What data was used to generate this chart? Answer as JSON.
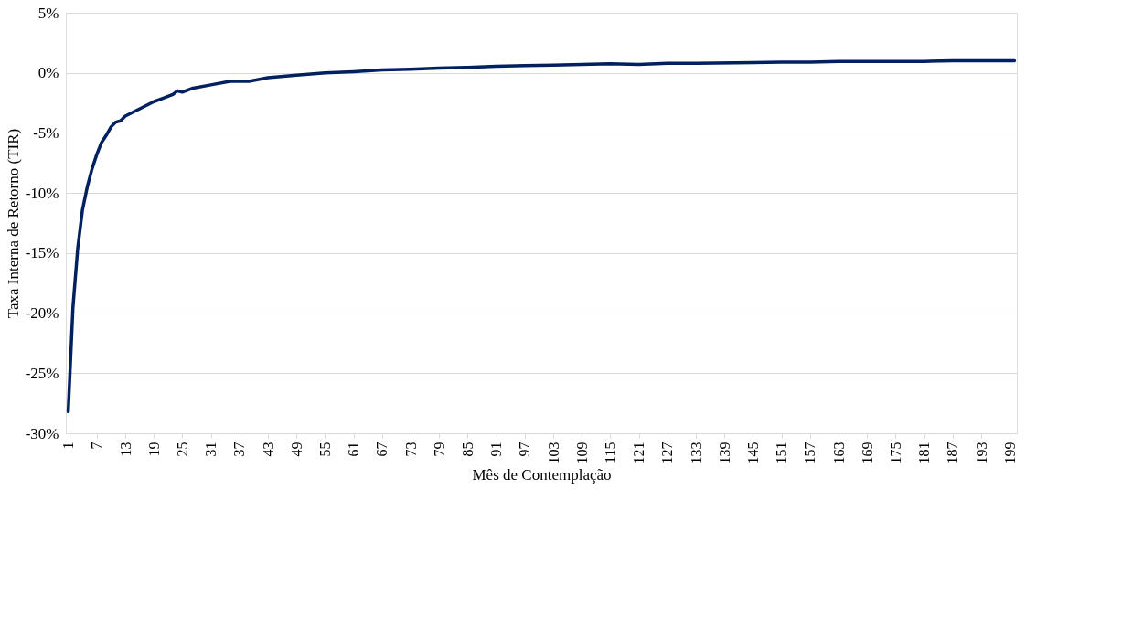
{
  "chart_data": {
    "type": "line",
    "xlabel": "Mês de Contemplação",
    "ylabel": "Taxa Interna de Retorno (TIR)",
    "series": [
      {
        "color": "#002060",
        "x": [
          1,
          2,
          3,
          4,
          5,
          6,
          7,
          8,
          9,
          10,
          11,
          12,
          13,
          15,
          17,
          19,
          21,
          23,
          24,
          25,
          27,
          31,
          35,
          39,
          43,
          49,
          55,
          61,
          67,
          73,
          79,
          85,
          91,
          97,
          103,
          115,
          121,
          127,
          133,
          145,
          151,
          157,
          163,
          175,
          181,
          187,
          199,
          200
        ],
        "values": [
          -28.2,
          -19.5,
          -14.6,
          -11.4,
          -9.5,
          -8,
          -6.8,
          -5.8,
          -5.2,
          -4.5,
          -4.1,
          -4,
          -3.6,
          -3.2,
          -2.8,
          -2.4,
          -2.1,
          -1.8,
          -1.5,
          -1.6,
          -1.3,
          -1,
          -0.7,
          -0.7,
          -0.4,
          -0.2,
          0,
          0.1,
          0.25,
          0.3,
          0.4,
          0.45,
          0.55,
          0.6,
          0.65,
          0.75,
          0.7,
          0.8,
          0.8,
          0.85,
          0.9,
          0.9,
          0.95,
          0.95,
          0.95,
          1,
          1,
          1
        ]
      }
    ],
    "xlim": [
      0.5,
      200.5
    ],
    "xticks": [
      1,
      7,
      13,
      19,
      25,
      31,
      37,
      43,
      49,
      55,
      61,
      67,
      73,
      79,
      85,
      91,
      97,
      103,
      109,
      115,
      121,
      127,
      133,
      139,
      145,
      151,
      157,
      163,
      169,
      175,
      181,
      187,
      193,
      199
    ],
    "ylim": [
      -30,
      5
    ],
    "yticks": [
      {
        "value": 5,
        "label": "5%"
      },
      {
        "value": 0,
        "label": "0%"
      },
      {
        "value": -5,
        "label": "-5%"
      },
      {
        "value": -10,
        "label": "-10%"
      },
      {
        "value": -15,
        "label": "-15%"
      },
      {
        "value": -20,
        "label": "-20%"
      },
      {
        "value": -25,
        "label": "-25%"
      },
      {
        "value": -30,
        "label": "-30%"
      }
    ],
    "grid": "y",
    "marker": "none",
    "line_style": "solid"
  }
}
